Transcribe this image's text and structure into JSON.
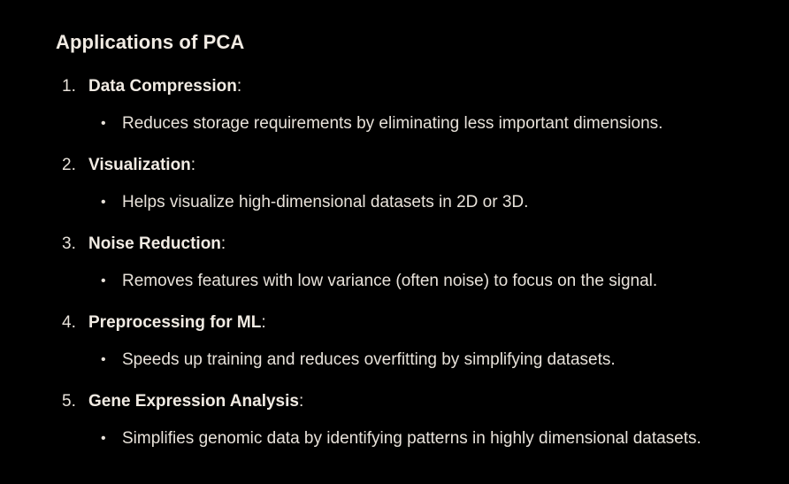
{
  "heading": "Applications of PCA",
  "items": [
    {
      "number": "1.",
      "title": "Data Compression",
      "colon": ":",
      "bullet": "•",
      "detail": "Reduces storage requirements by eliminating less important dimensions."
    },
    {
      "number": "2.",
      "title": "Visualization",
      "colon": ":",
      "bullet": "•",
      "detail": "Helps visualize high-dimensional datasets in 2D or 3D."
    },
    {
      "number": "3.",
      "title": "Noise Reduction",
      "colon": ":",
      "bullet": "•",
      "detail": "Removes features with low variance (often noise) to focus on the signal."
    },
    {
      "number": "4.",
      "title": "Preprocessing for ML",
      "colon": ":",
      "bullet": "•",
      "detail": "Speeds up training and reduces overfitting by simplifying datasets."
    },
    {
      "number": "5.",
      "title": "Gene Expression Analysis",
      "colon": ":",
      "bullet": "•",
      "detail": "Simplifies genomic data by identifying patterns in highly dimensional datasets."
    }
  ]
}
